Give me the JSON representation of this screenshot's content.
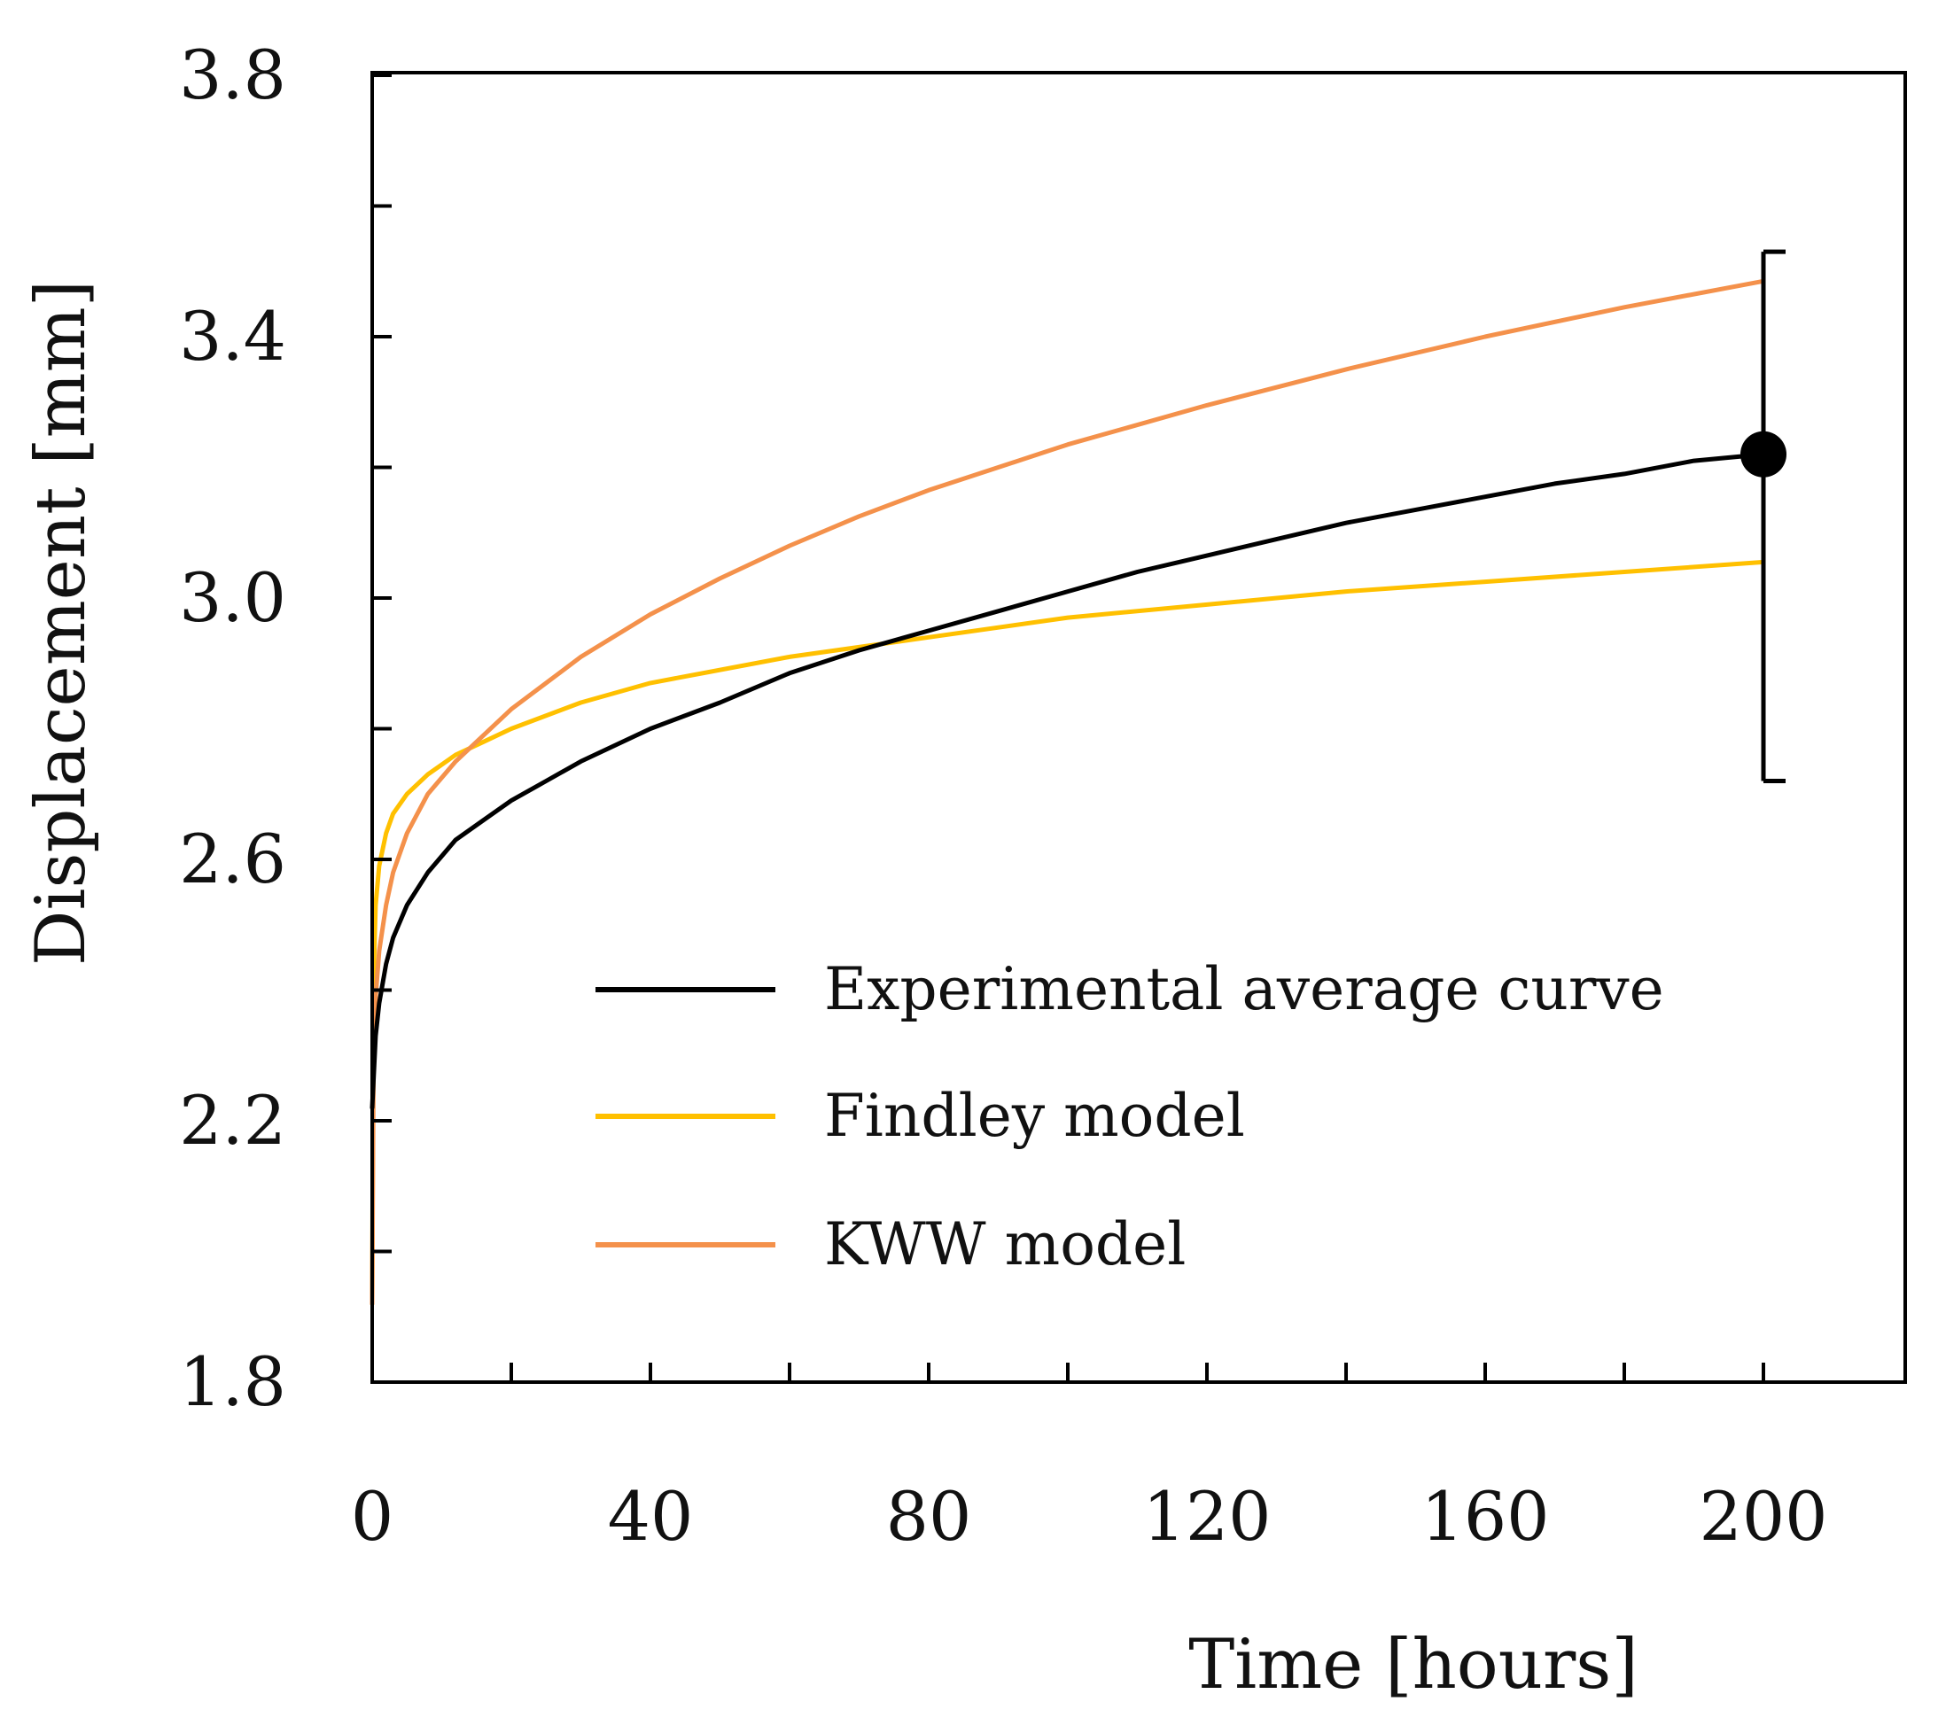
{
  "chart_data": {
    "type": "line",
    "title": "",
    "xlabel": "Time [hours]",
    "ylabel": "Displacement [mm]",
    "xlim": [
      0,
      220
    ],
    "ylim": [
      1.8,
      3.8
    ],
    "xticks": [
      0,
      40,
      80,
      120,
      160,
      200
    ],
    "xtick_labels": [
      "0",
      "40",
      "80",
      "120",
      "160",
      "200"
    ],
    "yticks": [
      1.8,
      2.2,
      2.6,
      3.0,
      3.4,
      3.8
    ],
    "ytick_labels": [
      "1.8",
      "2.2",
      "2.6",
      "3.0",
      "3.4",
      "3.8"
    ],
    "grid": false,
    "legend_position": "lower-right",
    "series": [
      {
        "name": "Experimental average curve",
        "color": "#000000",
        "x": [
          0,
          0.5,
          1,
          2,
          3,
          5,
          8,
          12,
          16,
          20,
          25,
          30,
          40,
          50,
          60,
          70,
          80,
          90,
          100,
          110,
          120,
          130,
          140,
          150,
          160,
          170,
          180,
          190,
          200
        ],
        "y": [
          2.22,
          2.33,
          2.38,
          2.44,
          2.48,
          2.53,
          2.58,
          2.63,
          2.66,
          2.69,
          2.72,
          2.75,
          2.8,
          2.84,
          2.885,
          2.92,
          2.95,
          2.98,
          3.01,
          3.04,
          3.065,
          3.09,
          3.115,
          3.135,
          3.155,
          3.175,
          3.19,
          3.21,
          3.22
        ]
      },
      {
        "name": "Findley model",
        "color": "#FFC000",
        "x": [
          0,
          0.2,
          0.5,
          1,
          2,
          3,
          5,
          8,
          12,
          16,
          20,
          30,
          40,
          60,
          80,
          100,
          120,
          140,
          160,
          180,
          200
        ],
        "y": [
          1.92,
          2.42,
          2.53,
          2.59,
          2.64,
          2.67,
          2.7,
          2.73,
          2.76,
          2.78,
          2.8,
          2.84,
          2.87,
          2.91,
          2.94,
          2.97,
          2.99,
          3.01,
          3.025,
          3.04,
          3.055
        ]
      },
      {
        "name": "KWW model",
        "color": "#F4914B",
        "x": [
          0,
          0.2,
          0.5,
          1,
          2,
          3,
          5,
          8,
          12,
          16,
          20,
          25,
          30,
          40,
          50,
          60,
          70,
          80,
          90,
          100,
          120,
          140,
          160,
          180,
          200
        ],
        "y": [
          1.92,
          2.3,
          2.39,
          2.46,
          2.53,
          2.58,
          2.64,
          2.7,
          2.75,
          2.79,
          2.83,
          2.87,
          2.91,
          2.975,
          3.03,
          3.08,
          3.125,
          3.165,
          3.2,
          3.235,
          3.295,
          3.35,
          3.4,
          3.445,
          3.485
        ]
      }
    ],
    "marker": {
      "x": 200,
      "y": 3.22,
      "error_low": 2.72,
      "error_high": 3.53,
      "color": "#000000"
    }
  }
}
